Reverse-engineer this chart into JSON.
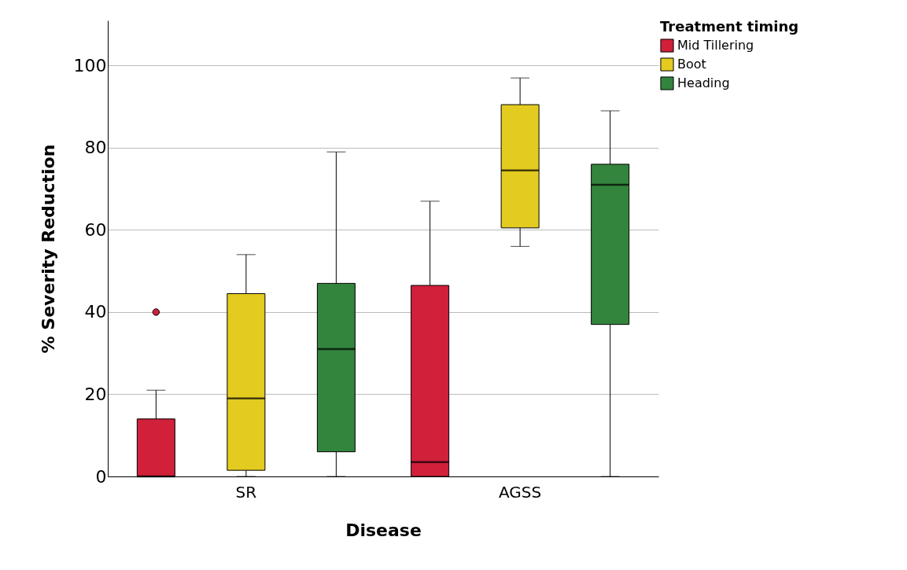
{
  "chart_data": {
    "type": "box",
    "xlabel": "Disease",
    "ylabel": "% Severity Reduction",
    "legend_title": "Treatment timing",
    "categories": [
      "SR",
      "AGSS"
    ],
    "series": [
      {
        "name": "Mid Tillering",
        "color": "#d0203a",
        "boxes": [
          {
            "low": 0,
            "q1": 0,
            "median": 0,
            "q3": 14,
            "high": 21,
            "outliers": [
              40
            ]
          },
          {
            "low": 0,
            "q1": 0,
            "median": 3.5,
            "q3": 46.5,
            "high": 67
          }
        ]
      },
      {
        "name": "Boot",
        "color": "#e3cb20",
        "boxes": [
          {
            "low": 0,
            "q1": 1.5,
            "median": 19,
            "q3": 44.5,
            "high": 54
          },
          {
            "low": 56,
            "q1": 60.5,
            "median": 74.5,
            "q3": 90.5,
            "high": 97
          }
        ]
      },
      {
        "name": "Heading",
        "color": "#33843c",
        "boxes": [
          {
            "low": 0,
            "q1": 6,
            "median": 31,
            "q3": 47,
            "high": 79
          },
          {
            "low": 0,
            "q1": 37,
            "median": 71,
            "q3": 76,
            "high": 89
          }
        ]
      }
    ],
    "ylim": [
      0,
      111
    ],
    "yticks": [
      0,
      20,
      40,
      60,
      80,
      100
    ],
    "grid": "y",
    "legend": "top right"
  }
}
